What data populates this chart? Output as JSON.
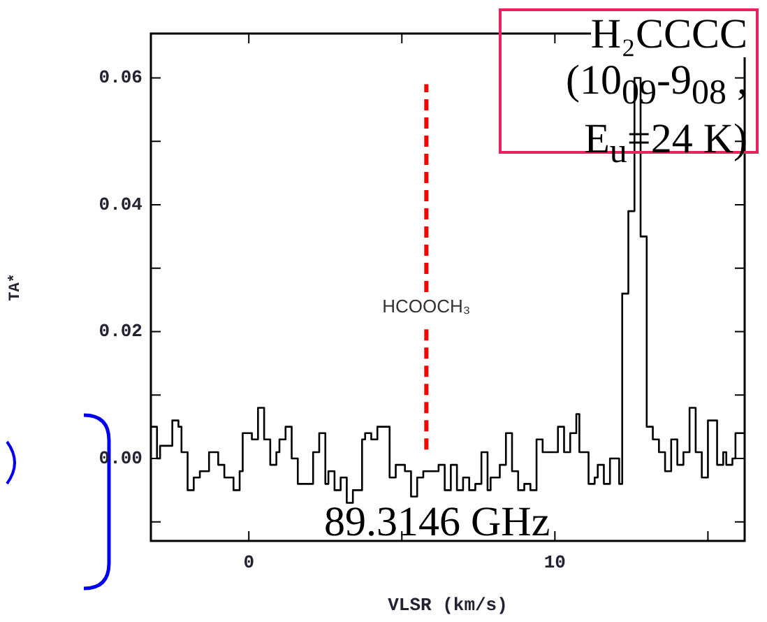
{
  "chart_data": {
    "type": "step",
    "xlabel": "VLSR (km/s)",
    "ylabel": "TA*",
    "x": [
      -3.2,
      -3.0,
      -2.9,
      -2.5,
      -2.3,
      -2.2,
      -2.0,
      -1.8,
      -1.6,
      -1.3,
      -1.0,
      -0.8,
      -0.5,
      -0.3,
      -0.2,
      0.1,
      0.3,
      0.5,
      0.7,
      0.9,
      1.0,
      1.2,
      1.4,
      1.6,
      1.8,
      2.1,
      2.3,
      2.5,
      2.6,
      2.8,
      3.0,
      3.2,
      3.4,
      3.7,
      3.8,
      4.0,
      4.2,
      4.4,
      4.6,
      4.8,
      5.1,
      5.3,
      5.5,
      5.7,
      6.0,
      6.2,
      6.4,
      6.6,
      6.8,
      7.0,
      7.2,
      7.4,
      7.6,
      7.8,
      7.9,
      8.2,
      8.4,
      8.6,
      8.8,
      9.0,
      9.2,
      9.4,
      9.6,
      10.1,
      10.3,
      10.5,
      10.7,
      10.8,
      11.1,
      11.3,
      11.4,
      11.6,
      11.8,
      12.1,
      12.2,
      12.4,
      12.6,
      12.8,
      13.0,
      13.2,
      13.4,
      13.6,
      13.8,
      14.0,
      14.2,
      14.4,
      14.6,
      14.8,
      15.0,
      15.3,
      15.5,
      15.6,
      15.8,
      15.9,
      16.2
    ],
    "series": [
      {
        "type": "step",
        "color": "#000000",
        "values": [
          0.005,
          0.0,
          0.002,
          0.006,
          0.005,
          0.001,
          -0.005,
          -0.003,
          -0.002,
          0.001,
          -0.001,
          -0.003,
          -0.005,
          -0.002,
          0.004,
          0.003,
          0.008,
          0.003,
          -0.001,
          0.001,
          0.003,
          0.005,
          0.0,
          -0.004,
          -0.004,
          0.001,
          0.004,
          -0.004,
          -0.002,
          -0.005,
          -0.003,
          -0.007,
          -0.005,
          0.003,
          0.004,
          0.003,
          0.005,
          0.005,
          -0.003,
          -0.001,
          -0.002,
          -0.006,
          -0.003,
          -0.002,
          -0.002,
          -0.001,
          -0.005,
          -0.001,
          -0.005,
          -0.003,
          -0.005,
          -0.004,
          0.001,
          -0.005,
          -0.003,
          -0.001,
          0.004,
          -0.002,
          -0.005,
          -0.004,
          -0.005,
          0.003,
          0.001,
          0.005,
          0.001,
          0.004,
          0.007,
          0.001,
          -0.004,
          -0.003,
          -0.001,
          -0.004,
          0.0,
          -0.004,
          0.026,
          0.039,
          0.06,
          0.035,
          0.005,
          0.003,
          0.001,
          -0.002,
          0.003,
          -0.001,
          0.001,
          0.008,
          0.001,
          -0.003,
          0.006,
          -0.001,
          0.001,
          -0.001,
          0.0,
          0.004,
          0.004
        ]
      }
    ],
    "ref_lines": [
      {
        "axis": "x",
        "value": 5.8,
        "label": "HCOOCH₃",
        "color": "#ff0000",
        "line_style": "dashed"
      }
    ],
    "xlim": [
      -3.2,
      16.2
    ],
    "ylim": [
      -0.013,
      0.067
    ],
    "xticks": [
      0,
      {
        "value": 5,
        "label": null
      },
      10,
      {
        "value": 15,
        "label": null
      }
    ],
    "yticks": [
      {
        "value": -0.01,
        "label": null
      },
      {
        "value": 0,
        "label": "0.00"
      },
      {
        "value": 0.01,
        "label": null
      },
      {
        "value": 0.02,
        "label": "0.02"
      },
      {
        "value": 0.03,
        "label": null
      },
      {
        "value": 0.04,
        "label": "0.04"
      },
      {
        "value": 0.05,
        "label": null
      },
      {
        "value": 0.06,
        "label": "0.06"
      }
    ],
    "grid": false,
    "legend": false,
    "marker": "none",
    "annotations": [
      "H₂CCCC\n(10$_{09}$-9$_{08}$ ,\nE$_{u}$=24 K)",
      "89.3146 GHz"
    ]
  }
}
